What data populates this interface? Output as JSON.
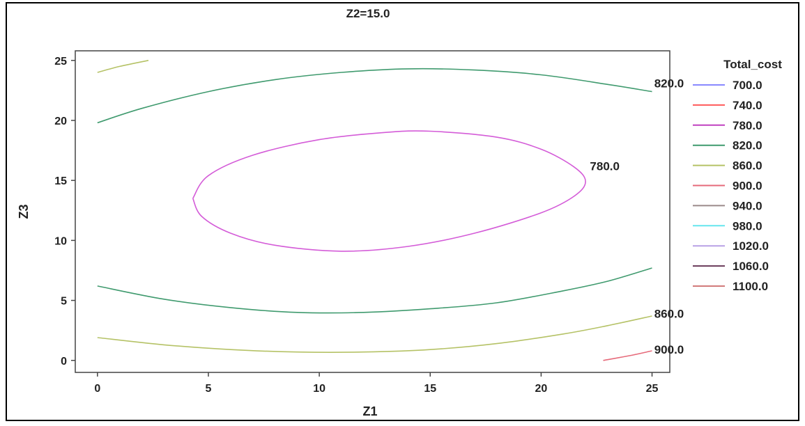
{
  "chart_data": {
    "type": "contour",
    "title": "Z2=15.0",
    "xlabel": "Z1",
    "ylabel": "Z3",
    "xlim": [
      -1,
      25.8
    ],
    "ylim": [
      -1,
      25.8
    ],
    "x_ticks": [
      0,
      5,
      10,
      15,
      20,
      25
    ],
    "y_ticks": [
      0,
      5,
      10,
      15,
      20,
      25
    ],
    "x_tick_labels": [
      "0",
      "5",
      "10",
      "15",
      "20",
      "25"
    ],
    "y_tick_labels": [
      "0",
      "5",
      "10",
      "15",
      "20",
      "25"
    ],
    "grid": false,
    "legend": {
      "title": "Total_cost",
      "placement": "right",
      "entries": [
        {
          "label": "700.0",
          "color": "#8888ff"
        },
        {
          "label": "740.0",
          "color": "#ff5a5a"
        },
        {
          "label": "780.0",
          "color": "#c040c0"
        },
        {
          "label": "820.0",
          "color": "#3f9a6e"
        },
        {
          "label": "860.0",
          "color": "#b5c266"
        },
        {
          "label": "900.0",
          "color": "#e66a7a"
        },
        {
          "label": "940.0",
          "color": "#9a8a8a"
        },
        {
          "label": "980.0",
          "color": "#66e6ee"
        },
        {
          "label": "1020.0",
          "color": "#b8a0e6"
        },
        {
          "label": "1060.0",
          "color": "#6a3a5a"
        },
        {
          "label": "1100.0",
          "color": "#d27a7a"
        }
      ]
    },
    "series": [
      {
        "level": 780,
        "color": "#d45cd8",
        "closed": true,
        "points": [
          [
            4.3,
            13.5
          ],
          [
            5,
            15.4
          ],
          [
            7,
            17.1
          ],
          [
            10,
            18.4
          ],
          [
            13,
            19.0
          ],
          [
            15,
            19.1
          ],
          [
            18,
            18.6
          ],
          [
            20,
            17.6
          ],
          [
            21.5,
            16.1
          ],
          [
            22,
            14.9
          ],
          [
            21.5,
            13.7
          ],
          [
            20,
            12.3
          ],
          [
            17,
            10.6
          ],
          [
            14,
            9.5
          ],
          [
            11,
            9.1
          ],
          [
            8,
            9.6
          ],
          [
            6,
            10.6
          ],
          [
            4.7,
            12.0
          ],
          [
            4.3,
            13.5
          ]
        ],
        "label": "780.0",
        "label_at": [
          22.2,
          16.2
        ]
      },
      {
        "level": 820,
        "color": "#3f9a6e",
        "closed": false,
        "points": [
          [
            0,
            19.8
          ],
          [
            2,
            21.0
          ],
          [
            5,
            22.4
          ],
          [
            8,
            23.4
          ],
          [
            11,
            24.0
          ],
          [
            14,
            24.3
          ],
          [
            17,
            24.2
          ],
          [
            20,
            23.8
          ],
          [
            23,
            23.0
          ],
          [
            25,
            22.4
          ]
        ],
        "label": "820.0",
        "label_at": [
          25.1,
          23.1
        ]
      },
      {
        "level": 820,
        "color": "#3f9a6e",
        "closed": false,
        "points": [
          [
            0,
            6.2
          ],
          [
            3,
            5.1
          ],
          [
            6,
            4.4
          ],
          [
            9,
            4.0
          ],
          [
            12,
            4.0
          ],
          [
            15,
            4.3
          ],
          [
            18,
            4.8
          ],
          [
            21,
            5.8
          ],
          [
            23,
            6.6
          ],
          [
            25,
            7.7
          ]
        ],
        "label": "",
        "label_at": null
      },
      {
        "level": 860,
        "color": "#b5c266",
        "closed": false,
        "points": [
          [
            0,
            1.9
          ],
          [
            3,
            1.3
          ],
          [
            6,
            0.9
          ],
          [
            9,
            0.7
          ],
          [
            12,
            0.7
          ],
          [
            15,
            0.9
          ],
          [
            18,
            1.4
          ],
          [
            21,
            2.2
          ],
          [
            23,
            2.9
          ],
          [
            25,
            3.7
          ]
        ],
        "label": "860.0",
        "label_at": [
          25.1,
          3.9
        ]
      },
      {
        "level": 860,
        "color": "#b5c266",
        "closed": false,
        "points": [
          [
            0,
            24.0
          ],
          [
            1,
            24.5
          ],
          [
            2.3,
            25.0
          ]
        ],
        "label": "",
        "label_at": null
      },
      {
        "level": 900,
        "color": "#e66a7a",
        "closed": false,
        "points": [
          [
            22.8,
            0.0
          ],
          [
            24,
            0.4
          ],
          [
            25,
            0.8
          ]
        ],
        "label": "900.0",
        "label_at": [
          25.1,
          0.9
        ]
      }
    ]
  }
}
